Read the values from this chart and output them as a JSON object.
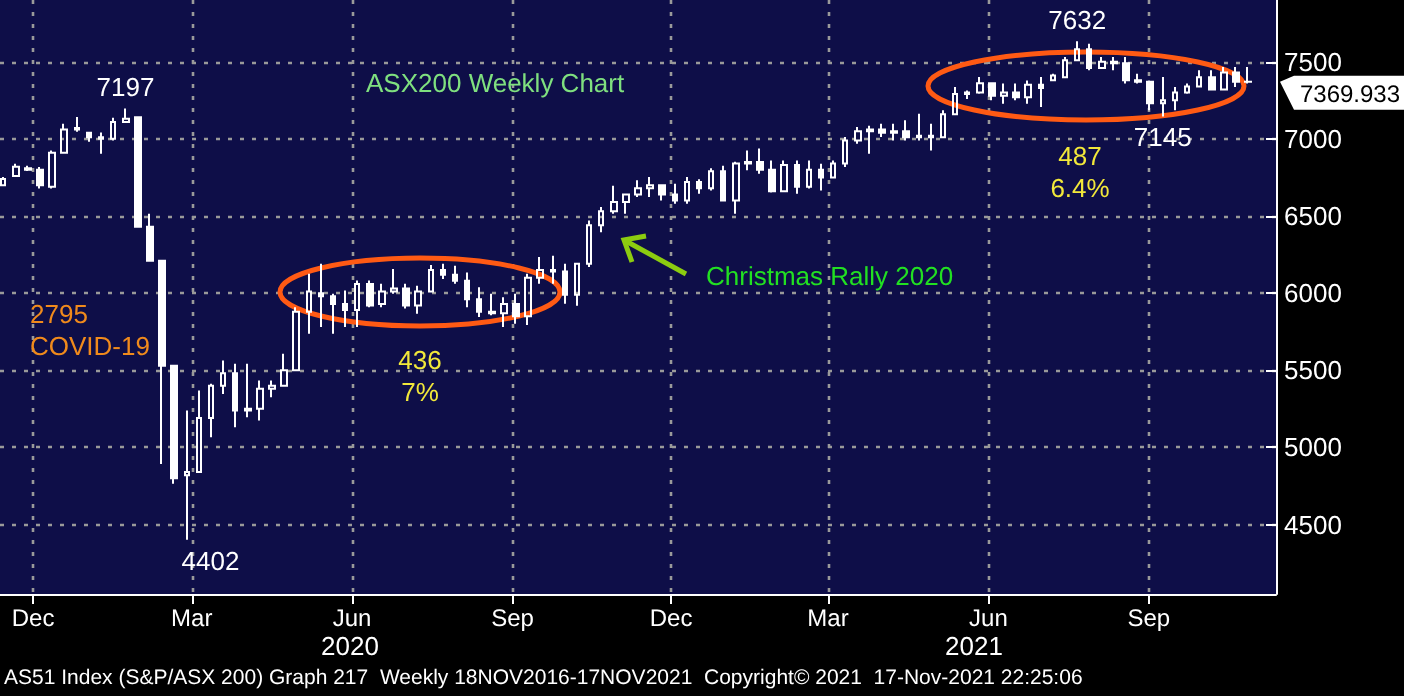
{
  "chart_data": {
    "type": "candlestick",
    "title": "ASX200 Weekly Chart",
    "color": "#ffffff",
    "x": [
      "2019-11-14",
      "2019-11-21",
      "2019-11-28",
      "2019-12-05",
      "2019-12-12",
      "2019-12-19",
      "2019-12-26",
      "2020-01-02",
      "2020-01-09",
      "2020-01-16",
      "2020-01-23",
      "2020-01-30",
      "2020-02-06",
      "2020-02-13",
      "2020-02-20",
      "2020-02-27",
      "2020-03-05",
      "2020-03-12",
      "2020-03-19",
      "2020-03-26",
      "2020-04-02",
      "2020-04-09",
      "2020-04-16",
      "2020-04-23",
      "2020-04-30",
      "2020-05-07",
      "2020-05-14",
      "2020-05-21",
      "2020-05-28",
      "2020-06-04",
      "2020-06-11",
      "2020-06-18",
      "2020-06-25",
      "2020-07-02",
      "2020-07-09",
      "2020-07-16",
      "2020-07-23",
      "2020-07-30",
      "2020-08-06",
      "2020-08-13",
      "2020-08-20",
      "2020-08-27",
      "2020-09-03",
      "2020-09-10",
      "2020-09-17",
      "2020-09-24",
      "2020-10-01",
      "2020-10-08",
      "2020-10-15",
      "2020-10-22",
      "2020-10-29",
      "2020-11-05",
      "2020-11-12",
      "2020-11-19",
      "2020-11-26",
      "2020-12-03",
      "2020-12-10",
      "2020-12-17",
      "2020-12-24",
      "2020-12-31",
      "2021-01-07",
      "2021-01-14",
      "2021-01-21",
      "2021-01-28",
      "2021-02-04",
      "2021-02-11",
      "2021-02-18",
      "2021-02-25",
      "2021-03-04",
      "2021-03-11",
      "2021-03-18",
      "2021-03-25",
      "2021-04-01",
      "2021-04-08",
      "2021-04-15",
      "2021-04-22",
      "2021-04-29",
      "2021-05-06",
      "2021-05-13",
      "2021-05-20",
      "2021-05-27",
      "2021-06-03",
      "2021-06-10",
      "2021-06-17",
      "2021-06-24",
      "2021-07-01",
      "2021-07-08",
      "2021-07-15",
      "2021-07-22",
      "2021-07-29",
      "2021-08-05",
      "2021-08-12",
      "2021-08-19",
      "2021-08-26",
      "2021-09-02",
      "2021-09-09",
      "2021-09-16",
      "2021-09-23",
      "2021-09-30",
      "2021-10-07",
      "2021-10-14",
      "2021-10-21",
      "2021-10-28"
    ],
    "ohlc": [
      [
        6700,
        6752,
        6696,
        6740
      ],
      [
        6760,
        6839,
        6752,
        6820
      ],
      [
        6810,
        6826,
        6791,
        6800
      ],
      [
        6800,
        6817,
        6679,
        6700
      ],
      [
        6690,
        6925,
        6679,
        6910
      ],
      [
        6910,
        7098,
        6904,
        7060
      ],
      [
        7060,
        7142,
        7046,
        7070
      ],
      [
        7040,
        7042,
        6981,
        7010
      ],
      [
        7010,
        7042,
        6904,
        7000
      ],
      [
        7000,
        7137,
        6990,
        7110
      ],
      [
        7110,
        7197,
        7107,
        7130
      ],
      [
        7140,
        7142,
        6428,
        6430
      ],
      [
        6430,
        6515,
        6203,
        6210
      ],
      [
        6210,
        6212,
        4893,
        5530
      ],
      [
        5530,
        5530,
        4764,
        4800
      ],
      [
        4820,
        5239,
        4402,
        4840
      ],
      [
        4840,
        5369,
        4840,
        5190
      ],
      [
        5190,
        5412,
        5066,
        5400
      ],
      [
        5400,
        5564,
        5347,
        5480
      ],
      [
        5480,
        5542,
        5131,
        5240
      ],
      [
        5240,
        5542,
        5196,
        5250
      ],
      [
        5250,
        5434,
        5174,
        5380
      ],
      [
        5380,
        5434,
        5326,
        5400
      ],
      [
        5400,
        5607,
        5399,
        5500
      ],
      [
        5500,
        5909,
        5499,
        5880
      ],
      [
        5880,
        6126,
        5737,
        6010
      ],
      [
        6000,
        6190,
        5780,
        5980
      ],
      [
        5980,
        5996,
        5737,
        5930
      ],
      [
        5930,
        6017,
        5780,
        5890
      ],
      [
        5890,
        6082,
        5780,
        6060
      ],
      [
        6060,
        6082,
        5909,
        5920
      ],
      [
        5930,
        6061,
        5909,
        6010
      ],
      [
        6010,
        6156,
        5996,
        6030
      ],
      [
        6030,
        6061,
        5901,
        5920
      ],
      [
        5920,
        6048,
        5866,
        6010
      ],
      [
        6010,
        6182,
        6005,
        6150
      ],
      [
        6150,
        6190,
        6091,
        6120
      ],
      [
        6120,
        6177,
        6061,
        6080
      ],
      [
        6080,
        6134,
        5909,
        5960
      ],
      [
        5960,
        6039,
        5845,
        5880
      ],
      [
        5880,
        5996,
        5857,
        5870
      ],
      [
        5870,
        5974,
        5780,
        5930
      ],
      [
        5930,
        5996,
        5801,
        5850
      ],
      [
        5850,
        6126,
        5793,
        6100
      ],
      [
        6100,
        6234,
        6061,
        6150
      ],
      [
        6150,
        6242,
        6061,
        6140
      ],
      [
        6140,
        6190,
        5931,
        5990
      ],
      [
        5990,
        6190,
        5918,
        6190
      ],
      [
        6190,
        6471,
        6169,
        6440
      ],
      [
        6440,
        6558,
        6394,
        6530
      ],
      [
        6530,
        6696,
        6515,
        6590
      ],
      [
        6590,
        6644,
        6515,
        6640
      ],
      [
        6640,
        6731,
        6623,
        6680
      ],
      [
        6680,
        6752,
        6623,
        6700
      ],
      [
        6700,
        6700,
        6601,
        6640
      ],
      [
        6640,
        6709,
        6580,
        6600
      ],
      [
        6600,
        6752,
        6580,
        6720
      ],
      [
        6720,
        6739,
        6644,
        6680
      ],
      [
        6680,
        6809,
        6666,
        6790
      ],
      [
        6790,
        6826,
        6600,
        6600
      ],
      [
        6600,
        6852,
        6515,
        6840
      ],
      [
        6840,
        6925,
        6796,
        6850
      ],
      [
        6850,
        6938,
        6774,
        6800
      ],
      [
        6800,
        6860,
        6653,
        6660
      ],
      [
        6660,
        6860,
        6660,
        6830
      ],
      [
        6830,
        6860,
        6644,
        6690
      ],
      [
        6690,
        6860,
        6679,
        6800
      ],
      [
        6800,
        6839,
        6666,
        6750
      ],
      [
        6750,
        6860,
        6750,
        6840
      ],
      [
        6840,
        7012,
        6817,
        6990
      ],
      [
        6990,
        7077,
        6968,
        7050
      ],
      [
        7050,
        7085,
        6904,
        7060
      ],
      [
        7060,
        7098,
        7012,
        7040
      ],
      [
        7040,
        7098,
        6990,
        7050
      ],
      [
        7050,
        7120,
        6990,
        7010
      ],
      [
        7010,
        7163,
        6990,
        7020
      ],
      [
        7020,
        7098,
        6925,
        7010
      ],
      [
        7010,
        7185,
        7010,
        7160
      ],
      [
        7160,
        7336,
        7160,
        7290
      ],
      [
        7290,
        7314,
        7258,
        7300
      ],
      [
        7300,
        7401,
        7293,
        7360
      ],
      [
        7360,
        7360,
        7250,
        7280
      ],
      [
        7280,
        7358,
        7228,
        7300
      ],
      [
        7300,
        7358,
        7250,
        7270
      ],
      [
        7270,
        7379,
        7228,
        7350
      ],
      [
        7350,
        7401,
        7206,
        7330
      ],
      [
        7380,
        7422,
        7375,
        7410
      ],
      [
        7400,
        7531,
        7400,
        7510
      ],
      [
        7510,
        7632,
        7510,
        7580
      ],
      [
        7580,
        7617,
        7444,
        7460
      ],
      [
        7460,
        7531,
        7460,
        7500
      ],
      [
        7500,
        7531,
        7444,
        7490
      ],
      [
        7490,
        7531,
        7358,
        7380
      ],
      [
        7380,
        7422,
        7358,
        7370
      ],
      [
        7370,
        7379,
        7185,
        7230
      ],
      [
        7230,
        7401,
        7145,
        7250
      ],
      [
        7250,
        7336,
        7185,
        7300
      ],
      [
        7300,
        7358,
        7293,
        7340
      ],
      [
        7340,
        7444,
        7336,
        7400
      ],
      [
        7400,
        7444,
        7314,
        7320
      ],
      [
        7320,
        7466,
        7314,
        7430
      ],
      [
        7430,
        7466,
        7336,
        7370
      ],
      [
        7370,
        7466,
        7358,
        7369.933
      ]
    ],
    "xlim": [
      "2019-11-12",
      "2021-11-13"
    ],
    "xticks": [
      {
        "value": "2019-12-01",
        "label": "Dec"
      },
      {
        "value": "2020-03-01",
        "label": "Mar"
      },
      {
        "value": "2020-06-01",
        "label": "Jun"
      },
      {
        "value": "2020-09-01",
        "label": "Sep"
      },
      {
        "value": "2020-12-01",
        "label": "Dec"
      },
      {
        "value": "2021-03-01",
        "label": "Mar"
      },
      {
        "value": "2021-06-01",
        "label": "Jun"
      },
      {
        "value": "2021-09-01",
        "label": "Sep"
      }
    ],
    "ylim": [
      4050,
      7900
    ],
    "yticks": [
      4500,
      5000,
      5500,
      6000,
      6500,
      7000,
      7500
    ],
    "grid": true,
    "annotations": [
      {
        "text": "7197",
        "x": "2020-01-23",
        "y": 7197
      },
      {
        "text": "4402",
        "x": "2020-02-27",
        "y": 4402
      },
      "2795",
      "COVID-19",
      "436",
      "7%",
      "Christmas Rally 2020",
      {
        "text": "7632",
        "x": "2021-07-22",
        "y": 7632
      },
      "487",
      "6.4%",
      {
        "text": "7145",
        "x": "2021-09-09",
        "y": 7145
      },
      {
        "text": "7369.933",
        "x": "2021-10-28",
        "y": 7369.933
      },
      "2020",
      "2021",
      "AS51 Index (S&P/ASX 200) Graph 217  Weekly 18NOV2016-17NOV2021  Copyright© 2021  17-Nov-2021 22:25:06"
    ]
  }
}
